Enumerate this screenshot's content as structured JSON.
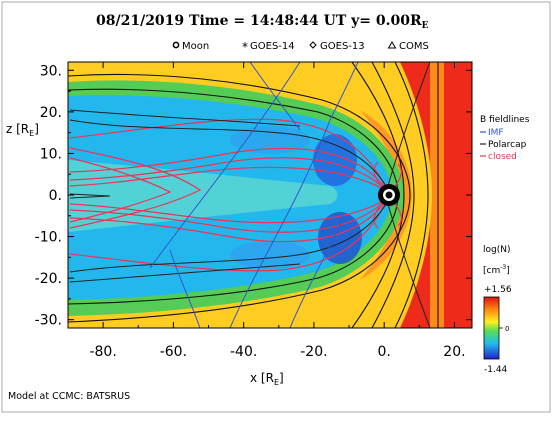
{
  "chart_data": {
    "type": "heatmap",
    "title": "08/21/2019 Time = 14:48:44 UT y= 0.00R",
    "title_subscript": "E",
    "markers_legend": [
      {
        "symbol": "moon-symbol",
        "label": "Moon"
      },
      {
        "symbol": "asterisk-symbol",
        "label": "GOES-14"
      },
      {
        "symbol": "diamond-symbol",
        "label": "GOES-13"
      },
      {
        "symbol": "triangle-symbol",
        "label": "COMS"
      }
    ],
    "xlabel": "x [R",
    "xlabel_sub": "E",
    "xlabel_end": "]",
    "ylabel": "z [R",
    "ylabel_sub": "E",
    "ylabel_end": "]",
    "xlim": [
      -90,
      25
    ],
    "ylim": [
      -32,
      32
    ],
    "x_ticks": [
      -80,
      -60,
      -40,
      -20,
      0,
      20
    ],
    "x_tick_labels": [
      "-80.",
      "-60.",
      "-40.",
      "-20.",
      "0.",
      "20."
    ],
    "y_ticks": [
      30,
      20,
      10,
      0,
      -10,
      -20,
      -30
    ],
    "y_tick_labels": [
      "30.",
      "20.",
      "10.",
      "0.",
      "-10.",
      "-20.",
      "-30."
    ],
    "field_lines_legend": {
      "title": "B fieldlines",
      "items": [
        {
          "label": "IMF",
          "color": "#3355dd"
        },
        {
          "label": "Polarcap",
          "color": "#222222"
        },
        {
          "label": "closed",
          "color": "#ee3355"
        }
      ]
    },
    "colorbar": {
      "title": "log(N)",
      "unit_prefix": "[cm",
      "unit_exp": "-3",
      "unit_suffix": "]",
      "max_label": "+1.56",
      "mid_label": "0",
      "min_label": "-1.44",
      "min": -1.44,
      "max": 1.56
    },
    "regions": [
      {
        "name": "solar wind",
        "color": "#ee2a1a"
      },
      {
        "name": "magnetosheath",
        "color": "#ffcc22"
      },
      {
        "name": "boundary layer",
        "color": "#44cc55"
      },
      {
        "name": "magnetosphere",
        "color": "#22b8ee"
      }
    ],
    "bow_shock_standoff_x": 12,
    "magnetopause_standoff_x": 8,
    "footer": "Model at CCMC: BATSRUS"
  }
}
